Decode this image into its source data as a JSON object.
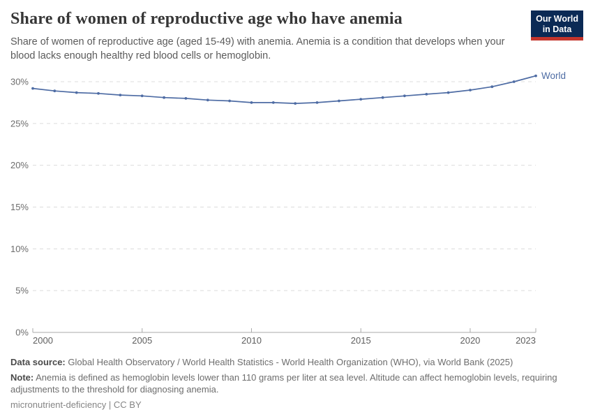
{
  "header": {
    "title": "Share of women of reproductive age who have anemia",
    "subtitle": "Share of women of reproductive age (aged 15-49) with anemia. Anemia is a condition that develops when your blood lacks enough healthy red blood cells or hemoglobin.",
    "logo": {
      "line1": "Our World",
      "line2": "in Data",
      "bg_color": "#0b2a55",
      "stripe_color": "#c4352c"
    }
  },
  "chart_data": {
    "type": "line",
    "title": "Share of women of reproductive age who have anemia",
    "xlabel": "",
    "ylabel": "",
    "ylim": [
      0,
      31
    ],
    "xlim": [
      2000,
      2023
    ],
    "grid": "horizontal-dashed",
    "legend": "end-of-line-label",
    "yticks": [
      0,
      5,
      10,
      15,
      20,
      25,
      30
    ],
    "ytick_labels": [
      "0%",
      "5%",
      "10%",
      "15%",
      "20%",
      "25%",
      "30%"
    ],
    "xticks": [
      2000,
      2005,
      2010,
      2015,
      2020,
      2023
    ],
    "xtick_labels": [
      "2000",
      "2005",
      "2010",
      "2015",
      "2020",
      "2023"
    ],
    "series": [
      {
        "name": "World",
        "color": "#4e6ca4",
        "x": [
          2000,
          2001,
          2002,
          2003,
          2004,
          2005,
          2006,
          2007,
          2008,
          2009,
          2010,
          2011,
          2012,
          2013,
          2014,
          2015,
          2016,
          2017,
          2018,
          2019,
          2020,
          2021,
          2022,
          2023
        ],
        "values": [
          29.2,
          28.9,
          28.7,
          28.6,
          28.4,
          28.3,
          28.1,
          28.0,
          27.8,
          27.7,
          27.5,
          27.5,
          27.4,
          27.5,
          27.7,
          27.9,
          28.1,
          28.3,
          28.5,
          28.7,
          29.0,
          29.4,
          30.0,
          30.7
        ]
      }
    ]
  },
  "footer": {
    "data_source_label": "Data source:",
    "data_source_text": "Global Health Observatory / World Health Statistics - World Health Organization (WHO), via World Bank (2025)",
    "note_label": "Note:",
    "note_text": "Anemia is defined as hemoglobin levels lower than 110 grams per liter at sea level. Altitude can affect hemoglobin levels, requiring adjustments to the threshold for diagnosing anemia.",
    "slug": "micronutrient-deficiency",
    "separator": "|",
    "license": "CC BY"
  }
}
